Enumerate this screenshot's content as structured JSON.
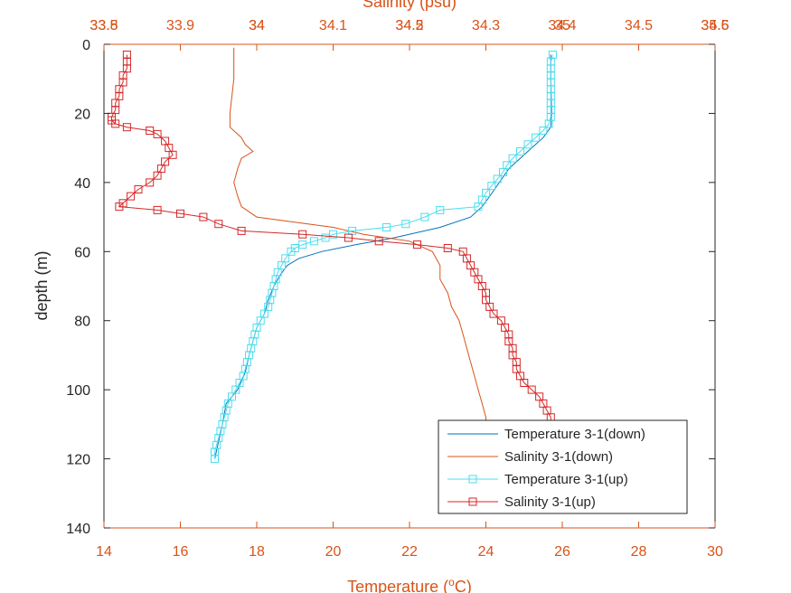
{
  "chart_data": {
    "type": "line",
    "x_bottom_label": "Temperature (",
    "x_bottom_label_sup": "o",
    "x_bottom_label_tail": "C)",
    "x_top_label": "Salinity (psu)",
    "ylabel": "depth (m)",
    "x_bottom_range": [
      14,
      30
    ],
    "x_top_range": [
      33.8,
      34.6
    ],
    "y_range": [
      0,
      140
    ],
    "y_reversed": true,
    "x_bottom_ticks": [
      "14",
      "16",
      "18",
      "20",
      "22",
      "24",
      "26",
      "28",
      "30"
    ],
    "y_ticks": [
      "0",
      "20",
      "40",
      "60",
      "80",
      "100",
      "120",
      "140"
    ],
    "x_top_ticks_a": [
      "33.8",
      "33.9",
      "34",
      "34.1",
      "34.2",
      "34.3",
      "34.4",
      "34.5",
      "34.6"
    ],
    "x_top_ticks_b": [
      "33.5",
      "34",
      "34.5",
      "35",
      "35.5"
    ],
    "grid": false,
    "legend_position": "bottom-right",
    "colors": {
      "axis_bottom": "#D95319",
      "axis_left": "#262626",
      "temp_down": "#0072BD",
      "sal_down": "#D95319",
      "temp_up": "#4DDDEE",
      "sal_up": "#D62728"
    },
    "series": [
      {
        "name": "Temperature 3-1(down)",
        "axis": "bottom",
        "marker": "none",
        "points": [
          [
            25.7,
            3
          ],
          [
            25.7,
            10
          ],
          [
            25.72,
            20
          ],
          [
            25.7,
            24
          ],
          [
            25.5,
            27
          ],
          [
            25.2,
            30
          ],
          [
            24.9,
            33
          ],
          [
            24.6,
            36
          ],
          [
            24.35,
            40
          ],
          [
            24.1,
            44
          ],
          [
            23.9,
            47
          ],
          [
            23.6,
            50
          ],
          [
            22.8,
            53
          ],
          [
            21.6,
            56
          ],
          [
            20.6,
            58
          ],
          [
            19.7,
            60
          ],
          [
            19.1,
            62
          ],
          [
            18.8,
            64
          ],
          [
            18.6,
            67
          ],
          [
            18.45,
            70
          ],
          [
            18.3,
            74
          ],
          [
            18.2,
            78
          ],
          [
            18.0,
            82
          ],
          [
            17.9,
            86
          ],
          [
            17.8,
            90
          ],
          [
            17.7,
            95
          ],
          [
            17.5,
            100
          ],
          [
            17.2,
            104
          ],
          [
            17.1,
            110
          ],
          [
            17.0,
            115
          ],
          [
            16.9,
            120
          ]
        ]
      },
      {
        "name": "Salinity 3-1(down)",
        "axis": "top",
        "marker": "none",
        "points": [
          [
            33.97,
            1
          ],
          [
            33.97,
            10
          ],
          [
            33.965,
            20
          ],
          [
            33.965,
            24
          ],
          [
            33.98,
            27
          ],
          [
            33.985,
            29
          ],
          [
            33.995,
            31
          ],
          [
            33.98,
            33
          ],
          [
            33.975,
            36
          ],
          [
            33.97,
            40
          ],
          [
            33.975,
            44
          ],
          [
            33.98,
            47
          ],
          [
            34.0,
            50
          ],
          [
            34.1,
            53
          ],
          [
            34.14,
            55
          ],
          [
            34.2,
            57
          ],
          [
            34.23,
            60
          ],
          [
            34.24,
            64
          ],
          [
            34.24,
            68
          ],
          [
            34.25,
            72
          ],
          [
            34.255,
            76
          ],
          [
            34.265,
            80
          ],
          [
            34.27,
            84
          ],
          [
            34.275,
            88
          ],
          [
            34.28,
            92
          ],
          [
            34.285,
            96
          ],
          [
            34.29,
            100
          ],
          [
            34.295,
            104
          ],
          [
            34.3,
            108
          ],
          [
            34.3,
            112
          ],
          [
            34.3,
            116
          ],
          [
            34.3,
            120
          ]
        ]
      },
      {
        "name": "Temperature 3-1(up)",
        "axis": "bottom",
        "marker": "square",
        "points": [
          [
            25.75,
            3
          ],
          [
            25.7,
            5
          ],
          [
            25.7,
            7
          ],
          [
            25.7,
            9
          ],
          [
            25.7,
            11
          ],
          [
            25.7,
            13
          ],
          [
            25.7,
            15
          ],
          [
            25.7,
            17
          ],
          [
            25.7,
            19
          ],
          [
            25.7,
            21
          ],
          [
            25.65,
            23
          ],
          [
            25.5,
            25
          ],
          [
            25.3,
            27
          ],
          [
            25.1,
            29
          ],
          [
            24.9,
            31
          ],
          [
            24.7,
            33
          ],
          [
            24.55,
            35
          ],
          [
            24.45,
            37
          ],
          [
            24.3,
            39
          ],
          [
            24.15,
            41
          ],
          [
            24.0,
            43
          ],
          [
            23.9,
            45
          ],
          [
            23.8,
            47
          ],
          [
            22.8,
            48
          ],
          [
            22.4,
            50
          ],
          [
            21.9,
            52
          ],
          [
            21.4,
            53
          ],
          [
            20.5,
            54
          ],
          [
            20.0,
            55
          ],
          [
            19.8,
            56
          ],
          [
            19.5,
            57
          ],
          [
            19.2,
            58
          ],
          [
            19.0,
            59
          ],
          [
            18.9,
            60
          ],
          [
            18.75,
            62
          ],
          [
            18.65,
            64
          ],
          [
            18.55,
            66
          ],
          [
            18.5,
            68
          ],
          [
            18.45,
            70
          ],
          [
            18.4,
            72
          ],
          [
            18.35,
            74
          ],
          [
            18.3,
            76
          ],
          [
            18.2,
            78
          ],
          [
            18.1,
            80
          ],
          [
            18.0,
            82
          ],
          [
            17.95,
            84
          ],
          [
            17.9,
            86
          ],
          [
            17.85,
            88
          ],
          [
            17.8,
            90
          ],
          [
            17.75,
            92
          ],
          [
            17.7,
            94
          ],
          [
            17.65,
            96
          ],
          [
            17.55,
            98
          ],
          [
            17.45,
            100
          ],
          [
            17.35,
            102
          ],
          [
            17.25,
            104
          ],
          [
            17.2,
            106
          ],
          [
            17.15,
            108
          ],
          [
            17.1,
            110
          ],
          [
            17.05,
            112
          ],
          [
            17.0,
            114
          ],
          [
            16.95,
            116
          ],
          [
            16.9,
            118
          ],
          [
            16.9,
            120
          ]
        ]
      },
      {
        "name": "Salinity 3-1(up)",
        "axis": "top",
        "marker": "square",
        "points": [
          [
            33.83,
            3
          ],
          [
            33.83,
            5
          ],
          [
            33.83,
            7
          ],
          [
            33.825,
            9
          ],
          [
            33.825,
            11
          ],
          [
            33.82,
            13
          ],
          [
            33.82,
            15
          ],
          [
            33.815,
            17
          ],
          [
            33.815,
            19
          ],
          [
            33.81,
            21
          ],
          [
            33.81,
            22
          ],
          [
            33.815,
            23
          ],
          [
            33.83,
            24
          ],
          [
            33.86,
            25
          ],
          [
            33.87,
            26
          ],
          [
            33.88,
            28
          ],
          [
            33.885,
            30
          ],
          [
            33.89,
            32
          ],
          [
            33.88,
            34
          ],
          [
            33.875,
            36
          ],
          [
            33.87,
            38
          ],
          [
            33.86,
            40
          ],
          [
            33.845,
            42
          ],
          [
            33.835,
            44
          ],
          [
            33.825,
            46
          ],
          [
            33.82,
            47
          ],
          [
            33.87,
            48
          ],
          [
            33.9,
            49
          ],
          [
            33.93,
            50
          ],
          [
            33.95,
            52
          ],
          [
            33.98,
            54
          ],
          [
            34.06,
            55
          ],
          [
            34.12,
            56
          ],
          [
            34.16,
            57
          ],
          [
            34.21,
            58
          ],
          [
            34.25,
            59
          ],
          [
            34.27,
            60
          ],
          [
            34.275,
            62
          ],
          [
            34.28,
            64
          ],
          [
            34.285,
            66
          ],
          [
            34.29,
            68
          ],
          [
            34.295,
            70
          ],
          [
            34.3,
            72
          ],
          [
            34.3,
            74
          ],
          [
            34.305,
            76
          ],
          [
            34.31,
            78
          ],
          [
            34.32,
            80
          ],
          [
            34.325,
            82
          ],
          [
            34.33,
            84
          ],
          [
            34.33,
            86
          ],
          [
            34.335,
            88
          ],
          [
            34.335,
            90
          ],
          [
            34.34,
            92
          ],
          [
            34.34,
            94
          ],
          [
            34.345,
            96
          ],
          [
            34.35,
            98
          ],
          [
            34.36,
            100
          ],
          [
            34.37,
            102
          ],
          [
            34.375,
            104
          ],
          [
            34.38,
            106
          ],
          [
            34.385,
            108
          ],
          [
            34.385,
            110
          ],
          [
            34.39,
            112
          ],
          [
            34.39,
            114
          ],
          [
            34.395,
            116
          ],
          [
            34.395,
            118
          ],
          [
            34.4,
            120
          ]
        ]
      }
    ]
  }
}
